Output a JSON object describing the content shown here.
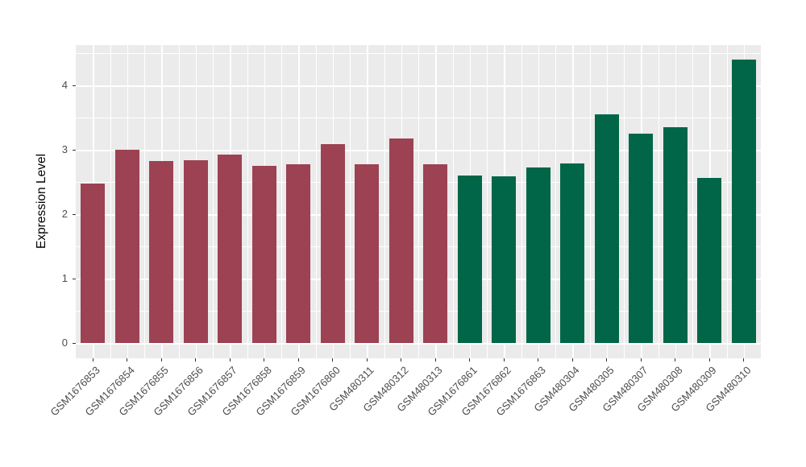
{
  "figure": {
    "background_color": "#FFFFFF"
  },
  "chart_data": {
    "type": "bar",
    "title": "",
    "xlabel": "",
    "ylabel": "Expression Level",
    "ylim": [
      0,
      4.62
    ],
    "yticks": [
      0,
      1,
      2,
      3,
      4
    ],
    "grid": "major and minor white gridlines on gray panel",
    "legend_position": "none",
    "panel_bg_color": "#EBEBEB",
    "grid_color": "#FFFFFF",
    "axis_text_color": "#4D4D4D",
    "group_colors": {
      "left_group_maroon": "#9C4252",
      "right_group_green": "#006647"
    },
    "categories": [
      "GSM1676853",
      "GSM1676854",
      "GSM1676855",
      "GSM1676856",
      "GSM1676857",
      "GSM1676858",
      "GSM1676859",
      "GSM1676860",
      "GSM480311",
      "GSM480312",
      "GSM480313",
      "GSM1676861",
      "GSM1676862",
      "GSM1676863",
      "GSM480304",
      "GSM480305",
      "GSM480307",
      "GSM480308",
      "GSM480309",
      "GSM480310"
    ],
    "values": [
      2.47,
      3.0,
      2.83,
      2.84,
      2.92,
      2.75,
      2.77,
      3.09,
      2.78,
      3.18,
      2.77,
      2.6,
      2.59,
      2.72,
      2.79,
      3.55,
      3.25,
      3.35,
      2.56,
      4.4
    ],
    "bar_colors": [
      "#9C4252",
      "#9C4252",
      "#9C4252",
      "#9C4252",
      "#9C4252",
      "#9C4252",
      "#9C4252",
      "#9C4252",
      "#9C4252",
      "#9C4252",
      "#9C4252",
      "#006647",
      "#006647",
      "#006647",
      "#006647",
      "#006647",
      "#006647",
      "#006647",
      "#006647",
      "#006647"
    ]
  }
}
